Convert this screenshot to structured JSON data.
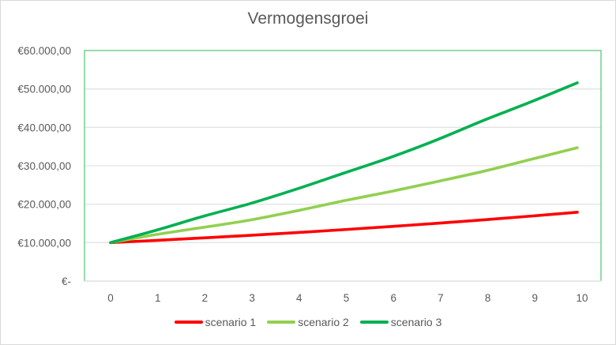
{
  "chart_data": {
    "type": "line",
    "title": "Vermogensgroei",
    "xlabel": "",
    "ylabel": "",
    "x": [
      0,
      1,
      2,
      3,
      4,
      5,
      6,
      7,
      8,
      9,
      10
    ],
    "ylim": [
      0,
      60000
    ],
    "yticks": [
      0,
      10000,
      20000,
      30000,
      40000,
      50000,
      60000
    ],
    "ytick_labels": [
      "€-",
      "€10.000,00",
      "€20.000,00",
      "€30.000,00",
      "€40.000,00",
      "€50.000,00",
      "€60.000,00"
    ],
    "xtick_labels": [
      "0",
      "1",
      "2",
      "3",
      "4",
      "5",
      "6",
      "7",
      "8",
      "9",
      "10"
    ],
    "grid": true,
    "legend_position": "bottom",
    "series": [
      {
        "name": "scenario 1",
        "color": "#ff0000",
        "values": [
          10000,
          10600,
          11240,
          11910,
          12620,
          13380,
          14190,
          15040,
          15940,
          16900,
          17910
        ]
      },
      {
        "name": "scenario 2",
        "color": "#92d050",
        "values": [
          10000,
          12150,
          14000,
          15900,
          18300,
          20900,
          23300,
          25900,
          28600,
          31650,
          34700
        ]
      },
      {
        "name": "scenario 3",
        "color": "#00b050",
        "values": [
          10000,
          13300,
          16900,
          20200,
          24000,
          28100,
          32200,
          36800,
          41850,
          46600,
          51600
        ]
      }
    ]
  },
  "colors": {
    "plot_border": "#70cf8f",
    "gridline": "#e3e3e3",
    "axis_text": "#595959"
  }
}
